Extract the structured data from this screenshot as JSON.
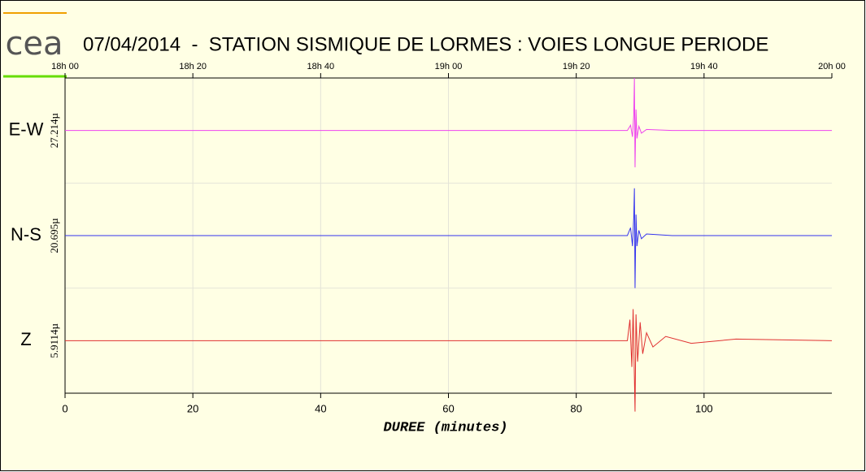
{
  "chart_data": {
    "type": "seismogram",
    "logo": "cea",
    "title": "07/04/2014  -  STATION SISMIQUE DE LORMES : VOIES LONGUE PERIODE",
    "xlabel": "DUREE (minutes)",
    "xlim": [
      0,
      120
    ],
    "xticks": [
      0,
      20,
      40,
      60,
      80,
      100
    ],
    "top_ticks": [
      {
        "value": 0,
        "label": "18h 00"
      },
      {
        "value": 20,
        "label": "18h 20"
      },
      {
        "value": 40,
        "label": "18h 40"
      },
      {
        "value": 60,
        "label": "19h 00"
      },
      {
        "value": 80,
        "label": "19h 20"
      },
      {
        "value": 100,
        "label": "19h 40"
      },
      {
        "value": 120,
        "label": "20h 00"
      }
    ],
    "grid": true,
    "channels": [
      {
        "name": "E-W",
        "scale_label": "27.214µ",
        "color": "#ee44ee",
        "ylim": [
          -1,
          1
        ],
        "x": [
          0,
          88,
          88.5,
          88.8,
          89.0,
          89.1,
          89.2,
          89.35,
          89.5,
          89.8,
          90.2,
          91,
          95,
          120
        ],
        "values": [
          0,
          0,
          0.1,
          -0.12,
          0.3,
          1.0,
          -0.7,
          0.4,
          -0.15,
          0.08,
          -0.05,
          0.02,
          0,
          0
        ]
      },
      {
        "name": "N-S",
        "scale_label": "20.695µ",
        "color": "#3333ee",
        "ylim": [
          -1,
          1
        ],
        "x": [
          0,
          88,
          88.5,
          88.8,
          89.0,
          89.1,
          89.2,
          89.35,
          89.5,
          89.8,
          90.2,
          91,
          95,
          120
        ],
        "values": [
          0,
          0,
          0.15,
          -0.2,
          0.35,
          0.9,
          -1.0,
          0.4,
          -0.2,
          0.1,
          -0.06,
          0.03,
          0,
          0
        ]
      },
      {
        "name": "Z",
        "scale_label": "5.9114µ",
        "color": "#e03030",
        "ylim": [
          -1,
          1
        ],
        "x": [
          0,
          88,
          88.4,
          88.7,
          88.9,
          89.1,
          89.2,
          89.35,
          89.6,
          90.0,
          90.4,
          91,
          92,
          94,
          98,
          105,
          120
        ],
        "values": [
          0,
          0,
          0.4,
          -0.5,
          0.6,
          -0.7,
          -1.35,
          0.5,
          -0.4,
          0.35,
          -0.25,
          0.15,
          -0.12,
          0.08,
          -0.05,
          0.03,
          0
        ]
      }
    ]
  }
}
